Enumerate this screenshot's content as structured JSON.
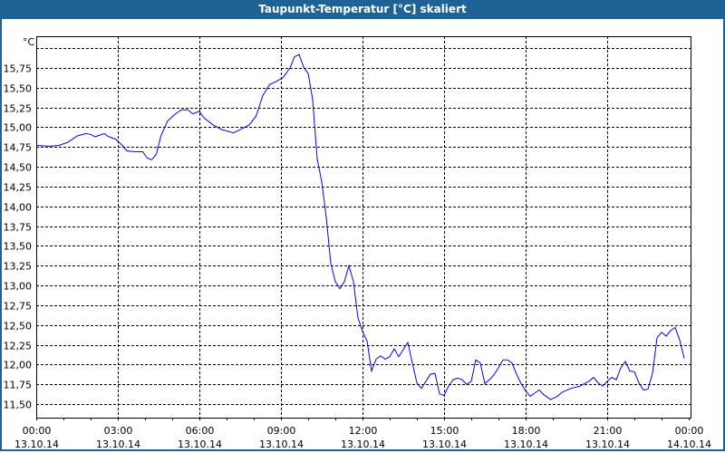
{
  "window": {
    "title": "Taupunkt-Temperatur [°C] skaliert"
  },
  "chart_data": {
    "type": "line",
    "title": "Taupunkt-Temperatur [°C] skaliert",
    "ylabel": "°C",
    "xlabel": "",
    "ylim": [
      11.33,
      16.15
    ],
    "yticks": [
      "11,50",
      "11,75",
      "12,00",
      "12,25",
      "12,50",
      "12,75",
      "13,00",
      "13,25",
      "13,50",
      "13,75",
      "14,00",
      "14,25",
      "14,50",
      "14,75",
      "15,00",
      "15,25",
      "15,50",
      "15,75",
      ""
    ],
    "ytick_values": [
      11.5,
      11.75,
      12.0,
      12.25,
      12.5,
      12.75,
      13.0,
      13.25,
      13.5,
      13.75,
      14.0,
      14.25,
      14.5,
      14.75,
      15.0,
      15.25,
      15.5,
      15.75,
      16.0
    ],
    "xticks": [
      {
        "time": "00:00",
        "date": "13.10.14"
      },
      {
        "time": "03:00",
        "date": "13.10.14"
      },
      {
        "time": "06:00",
        "date": "13.10.14"
      },
      {
        "time": "09:00",
        "date": "13.10.14"
      },
      {
        "time": "12:00",
        "date": "13.10.14"
      },
      {
        "time": "15:00",
        "date": "13.10.14"
      },
      {
        "time": "18:00",
        "date": "13.10.14"
      },
      {
        "time": "21:00",
        "date": "13.10.14"
      },
      {
        "time": "00:00",
        "date": "14.10.14"
      }
    ],
    "xlim": [
      "13.10.14 00:00",
      "14.10.14 00:00"
    ],
    "grid": true,
    "line_color": "#0000ff",
    "series": [
      {
        "x": [
          "00:00",
          "00:30",
          "00:50",
          "01:10",
          "01:30",
          "01:50",
          "02:00",
          "02:10",
          "02:30",
          "02:40",
          "02:55",
          "03:10",
          "03:20",
          "03:40",
          "03:55",
          "04:05",
          "04:15",
          "04:25",
          "04:35",
          "04:50",
          "05:05",
          "05:20",
          "05:35",
          "05:45",
          "06:00",
          "06:10",
          "06:30",
          "06:50",
          "07:15",
          "07:30",
          "07:50",
          "08:05",
          "08:20",
          "08:35",
          "08:50",
          "09:05",
          "09:20",
          "09:30",
          "09:40",
          "09:50",
          "10:00",
          "10:10",
          "10:20",
          "10:30",
          "10:40",
          "10:50",
          "11:00",
          "11:10",
          "11:20",
          "11:30",
          "11:40",
          "11:50",
          "12:00",
          "12:10",
          "12:20",
          "12:30",
          "12:40",
          "12:50",
          "13:00",
          "13:10",
          "13:20",
          "13:30",
          "13:40",
          "13:50",
          "14:00",
          "14:10",
          "14:20",
          "14:30",
          "14:40",
          "14:50",
          "15:00",
          "15:10",
          "15:20",
          "15:30",
          "15:40",
          "15:50",
          "16:00",
          "16:10",
          "16:20",
          "16:30",
          "16:40",
          "16:50",
          "17:00",
          "17:10",
          "17:20",
          "17:30",
          "17:40",
          "17:50",
          "18:00",
          "18:10",
          "18:20",
          "18:30",
          "18:40",
          "18:55",
          "19:10",
          "19:20",
          "19:40",
          "20:00",
          "20:10",
          "20:20",
          "20:30",
          "20:40",
          "20:50",
          "21:00",
          "21:10",
          "21:20",
          "21:30",
          "21:40",
          "21:50",
          "22:00",
          "22:10",
          "22:20",
          "22:30",
          "22:40",
          "22:50",
          "23:00",
          "23:10",
          "23:20",
          "23:30",
          "23:40",
          "23:50"
        ],
        "values": [
          14.77,
          14.76,
          14.77,
          14.81,
          14.89,
          14.92,
          14.91,
          14.88,
          14.92,
          14.88,
          14.85,
          14.77,
          14.7,
          14.69,
          14.69,
          14.61,
          14.59,
          14.66,
          14.89,
          15.08,
          15.16,
          15.22,
          15.22,
          15.17,
          15.2,
          15.12,
          15.03,
          14.97,
          14.93,
          14.97,
          15.03,
          15.14,
          15.4,
          15.54,
          15.58,
          15.63,
          15.75,
          15.89,
          15.92,
          15.76,
          15.68,
          15.35,
          14.6,
          14.31,
          13.86,
          13.28,
          13.05,
          12.96,
          13.05,
          13.25,
          13.05,
          12.59,
          12.42,
          12.3,
          11.92,
          12.07,
          12.11,
          12.07,
          12.1,
          12.2,
          12.1,
          12.19,
          12.28,
          12.02,
          11.77,
          11.7,
          11.79,
          11.88,
          11.89,
          11.63,
          11.61,
          11.73,
          11.81,
          11.83,
          11.81,
          11.75,
          11.79,
          12.06,
          12.02,
          11.76,
          11.81,
          11.87,
          11.96,
          12.06,
          12.06,
          12.02,
          11.88,
          11.76,
          11.67,
          11.6,
          11.64,
          11.68,
          11.62,
          11.56,
          11.6,
          11.65,
          11.7,
          11.73,
          11.76,
          11.79,
          11.84,
          11.77,
          11.73,
          11.79,
          11.84,
          11.81,
          11.96,
          12.04,
          11.92,
          11.91,
          11.77,
          11.68,
          11.69,
          11.89,
          12.34,
          12.41,
          12.36,
          12.43,
          12.47,
          12.31,
          12.08
        ]
      }
    ]
  }
}
